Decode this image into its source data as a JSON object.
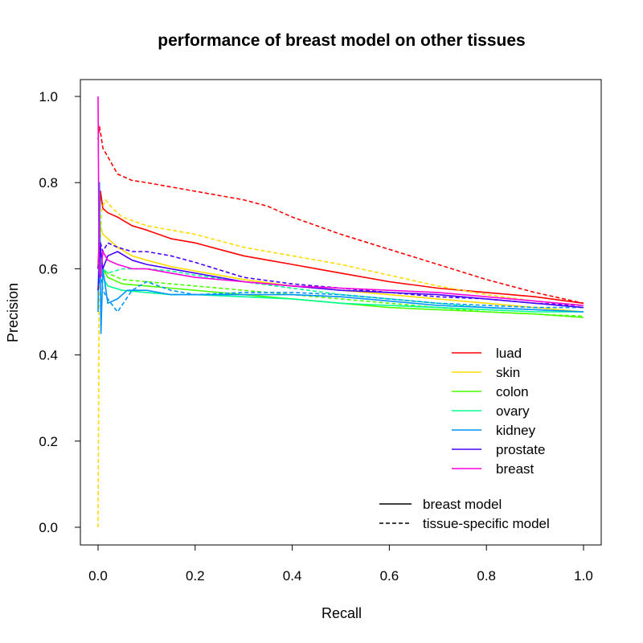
{
  "chart_data": {
    "type": "line",
    "title": "performance of breast model on other tissues",
    "xlabel": "Recall",
    "ylabel": "Precision",
    "xlim": [
      0,
      1
    ],
    "ylim": [
      0,
      1
    ],
    "x_ticks": [
      "0.0",
      "0.2",
      "0.4",
      "0.6",
      "0.8",
      "1.0"
    ],
    "y_ticks": [
      "0.0",
      "0.2",
      "0.4",
      "0.6",
      "0.8",
      "1.0"
    ],
    "grid": false,
    "legend_placement": "bottom-right",
    "series_legend": [
      {
        "name": "luad",
        "color": "#ff0000"
      },
      {
        "name": "skin",
        "color": "#ffdb00"
      },
      {
        "name": "colon",
        "color": "#49ff00"
      },
      {
        "name": "ovary",
        "color": "#00ff92"
      },
      {
        "name": "kidney",
        "color": "#0092ff"
      },
      {
        "name": "prostate",
        "color": "#4900ff"
      },
      {
        "name": "breast",
        "color": "#ff00db"
      }
    ],
    "linetype_legend": [
      {
        "name": "breast model",
        "dash": "solid"
      },
      {
        "name": "tissue-specific model",
        "dash": "dashed"
      }
    ],
    "series": [
      {
        "tissue": "luad",
        "model": "breast model",
        "color": "#ff0000",
        "dash": "solid",
        "x": [
          0,
          0.005,
          0.01,
          0.02,
          0.04,
          0.07,
          0.1,
          0.15,
          0.2,
          0.25,
          0.3,
          0.35,
          0.4,
          0.45,
          0.5,
          0.6,
          0.7,
          0.8,
          0.9,
          1.0
        ],
        "y": [
          0.6,
          0.78,
          0.74,
          0.73,
          0.72,
          0.7,
          0.69,
          0.67,
          0.66,
          0.645,
          0.63,
          0.62,
          0.61,
          0.6,
          0.59,
          0.57,
          0.555,
          0.545,
          0.535,
          0.52
        ]
      },
      {
        "tissue": "luad",
        "model": "tissue-specific model",
        "color": "#ff0000",
        "dash": "dashed",
        "x": [
          0,
          0.003,
          0.006,
          0.01,
          0.02,
          0.04,
          0.07,
          0.1,
          0.15,
          0.2,
          0.25,
          0.3,
          0.35,
          0.4,
          0.45,
          0.5,
          0.6,
          0.7,
          0.8,
          0.9,
          1.0
        ],
        "y": [
          0.9,
          0.93,
          0.91,
          0.88,
          0.86,
          0.82,
          0.805,
          0.8,
          0.79,
          0.78,
          0.77,
          0.76,
          0.745,
          0.72,
          0.7,
          0.68,
          0.645,
          0.61,
          0.575,
          0.545,
          0.52
        ]
      },
      {
        "tissue": "skin",
        "model": "breast model",
        "color": "#ffdb00",
        "dash": "solid",
        "x": [
          0,
          0.005,
          0.01,
          0.02,
          0.04,
          0.07,
          0.1,
          0.15,
          0.2,
          0.3,
          0.4,
          0.5,
          0.6,
          0.7,
          0.8,
          0.9,
          1.0
        ],
        "y": [
          0.55,
          0.7,
          0.68,
          0.67,
          0.65,
          0.63,
          0.62,
          0.605,
          0.595,
          0.575,
          0.56,
          0.55,
          0.54,
          0.53,
          0.52,
          0.51,
          0.5
        ]
      },
      {
        "tissue": "skin",
        "model": "tissue-specific model",
        "color": "#ffdb00",
        "dash": "dashed",
        "x": [
          0,
          0.002,
          0.004,
          0.008,
          0.015,
          0.03,
          0.05,
          0.1,
          0.15,
          0.2,
          0.25,
          0.3,
          0.35,
          0.4,
          0.5,
          0.6,
          0.7,
          0.8,
          0.9,
          1.0
        ],
        "y": [
          0.0,
          0.5,
          0.65,
          0.74,
          0.76,
          0.74,
          0.72,
          0.7,
          0.69,
          0.68,
          0.665,
          0.65,
          0.64,
          0.63,
          0.61,
          0.585,
          0.56,
          0.54,
          0.525,
          0.515
        ]
      },
      {
        "tissue": "colon",
        "model": "breast model",
        "color": "#49ff00",
        "dash": "solid",
        "x": [
          0,
          0.005,
          0.01,
          0.02,
          0.05,
          0.1,
          0.15,
          0.2,
          0.3,
          0.4,
          0.5,
          0.6,
          0.7,
          0.8,
          0.9,
          1.0
        ],
        "y": [
          0.6,
          0.62,
          0.6,
          0.58,
          0.565,
          0.56,
          0.555,
          0.55,
          0.54,
          0.53,
          0.52,
          0.51,
          0.505,
          0.5,
          0.495,
          0.487
        ]
      },
      {
        "tissue": "colon",
        "model": "tissue-specific model",
        "color": "#49ff00",
        "dash": "dashed",
        "x": [
          0,
          0.005,
          0.01,
          0.02,
          0.05,
          0.1,
          0.15,
          0.2,
          0.3,
          0.4,
          0.5,
          0.6,
          0.7,
          0.8,
          0.9,
          1.0
        ],
        "y": [
          0.55,
          0.58,
          0.6,
          0.59,
          0.575,
          0.57,
          0.565,
          0.56,
          0.55,
          0.54,
          0.53,
          0.52,
          0.51,
          0.5,
          0.495,
          0.49
        ]
      },
      {
        "tissue": "ovary",
        "model": "breast model",
        "color": "#00ff92",
        "dash": "solid",
        "x": [
          0,
          0.005,
          0.01,
          0.02,
          0.05,
          0.1,
          0.15,
          0.2,
          0.3,
          0.4,
          0.5,
          0.6,
          0.7,
          0.8,
          0.9,
          1.0
        ],
        "y": [
          0.55,
          0.6,
          0.58,
          0.56,
          0.55,
          0.545,
          0.54,
          0.54,
          0.535,
          0.53,
          0.52,
          0.515,
          0.51,
          0.505,
          0.5,
          0.5
        ]
      },
      {
        "tissue": "ovary",
        "model": "tissue-specific model",
        "color": "#00ff92",
        "dash": "dashed",
        "x": [
          0,
          0.005,
          0.01,
          0.02,
          0.05,
          0.1,
          0.15,
          0.2,
          0.3,
          0.4,
          0.5,
          0.6,
          0.7,
          0.8,
          0.9,
          1.0
        ],
        "y": [
          0.6,
          0.62,
          0.6,
          0.59,
          0.6,
          0.6,
          0.595,
          0.585,
          0.57,
          0.555,
          0.54,
          0.53,
          0.52,
          0.51,
          0.505,
          0.5
        ]
      },
      {
        "tissue": "kidney",
        "model": "breast model",
        "color": "#0092ff",
        "dash": "solid",
        "x": [
          0,
          0.003,
          0.006,
          0.01,
          0.02,
          0.04,
          0.06,
          0.1,
          0.15,
          0.2,
          0.3,
          0.4,
          0.5,
          0.6,
          0.7,
          0.8,
          0.9,
          1.0
        ],
        "y": [
          0.5,
          0.8,
          0.45,
          0.6,
          0.52,
          0.53,
          0.55,
          0.55,
          0.54,
          0.54,
          0.54,
          0.54,
          0.535,
          0.525,
          0.515,
          0.51,
          0.505,
          0.5
        ]
      },
      {
        "tissue": "kidney",
        "model": "tissue-specific model",
        "color": "#0092ff",
        "dash": "dashed",
        "x": [
          0,
          0.005,
          0.01,
          0.02,
          0.04,
          0.07,
          0.1,
          0.15,
          0.2,
          0.3,
          0.4,
          0.5,
          0.6,
          0.7,
          0.8,
          0.9,
          1.0
        ],
        "y": [
          0.55,
          0.6,
          0.55,
          0.53,
          0.5,
          0.55,
          0.57,
          0.55,
          0.54,
          0.545,
          0.545,
          0.54,
          0.53,
          0.52,
          0.515,
          0.51,
          0.51
        ]
      },
      {
        "tissue": "prostate",
        "model": "breast model",
        "color": "#4900ff",
        "dash": "solid",
        "x": [
          0,
          0.005,
          0.01,
          0.02,
          0.04,
          0.07,
          0.1,
          0.15,
          0.2,
          0.3,
          0.4,
          0.5,
          0.6,
          0.7,
          0.8,
          0.9,
          1.0
        ],
        "y": [
          0.55,
          0.65,
          0.6,
          0.63,
          0.64,
          0.62,
          0.61,
          0.6,
          0.59,
          0.57,
          0.56,
          0.55,
          0.545,
          0.54,
          0.53,
          0.52,
          0.51
        ]
      },
      {
        "tissue": "prostate",
        "model": "tissue-specific model",
        "color": "#4900ff",
        "dash": "dashed",
        "x": [
          0,
          0.005,
          0.01,
          0.02,
          0.04,
          0.07,
          0.1,
          0.15,
          0.2,
          0.3,
          0.4,
          0.5,
          0.6,
          0.7,
          0.8,
          0.9,
          1.0
        ],
        "y": [
          0.6,
          0.66,
          0.64,
          0.66,
          0.65,
          0.64,
          0.64,
          0.63,
          0.615,
          0.58,
          0.565,
          0.555,
          0.545,
          0.535,
          0.53,
          0.52,
          0.515
        ]
      },
      {
        "tissue": "breast",
        "model": "breast model",
        "color": "#ff00db",
        "dash": "solid",
        "x": [
          0,
          0.002,
          0.005,
          0.01,
          0.02,
          0.04,
          0.07,
          0.1,
          0.15,
          0.2,
          0.3,
          0.4,
          0.5,
          0.6,
          0.7,
          0.8,
          0.9,
          1.0
        ],
        "y": [
          1.0,
          0.6,
          0.58,
          0.64,
          0.62,
          0.61,
          0.6,
          0.6,
          0.59,
          0.58,
          0.57,
          0.56,
          0.555,
          0.55,
          0.545,
          0.535,
          0.525,
          0.515
        ]
      }
    ]
  }
}
